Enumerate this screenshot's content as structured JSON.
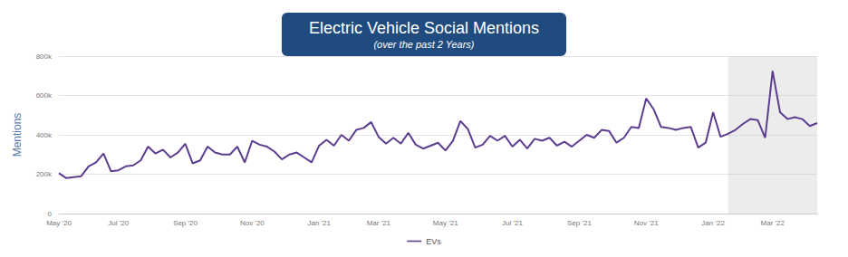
{
  "chart_data": {
    "type": "line",
    "title": "Electric Vehicle Social Mentions",
    "subtitle": "(over the past 2 Years)",
    "y_label": "Mentions",
    "categories": [
      "May '20",
      null,
      null,
      null,
      null,
      null,
      null,
      null,
      "Jul '20",
      null,
      null,
      null,
      null,
      null,
      null,
      null,
      null,
      "Sep '20",
      null,
      null,
      null,
      null,
      null,
      null,
      null,
      null,
      "Nov '20",
      null,
      null,
      null,
      null,
      null,
      null,
      null,
      null,
      "Jan '21",
      null,
      null,
      null,
      null,
      null,
      null,
      null,
      "Mar '21",
      null,
      null,
      null,
      null,
      null,
      null,
      null,
      null,
      "May '21",
      null,
      null,
      null,
      null,
      null,
      null,
      null,
      null,
      "Jul '21",
      null,
      null,
      null,
      null,
      null,
      null,
      null,
      null,
      "Sep '21",
      null,
      null,
      null,
      null,
      null,
      null,
      null,
      null,
      "Nov '21",
      null,
      null,
      null,
      null,
      null,
      null,
      null,
      null,
      "Jan '22",
      null,
      null,
      null,
      null,
      null,
      null,
      null,
      "Mar '22",
      null,
      null,
      null,
      null,
      null,
      null
    ],
    "series": [
      {
        "name": "EVs",
        "color": "#5c3d8f",
        "values": [
          205000,
          180000,
          185000,
          190000,
          240000,
          260000,
          305000,
          215000,
          220000,
          240000,
          245000,
          270000,
          340000,
          305000,
          325000,
          285000,
          310000,
          355000,
          255000,
          270000,
          340000,
          310000,
          300000,
          300000,
          340000,
          260000,
          370000,
          350000,
          340000,
          315000,
          275000,
          300000,
          310000,
          285000,
          260000,
          345000,
          375000,
          345000,
          400000,
          370000,
          425000,
          435000,
          465000,
          390000,
          355000,
          385000,
          355000,
          410000,
          350000,
          330000,
          345000,
          360000,
          320000,
          370000,
          470000,
          430000,
          335000,
          350000,
          395000,
          370000,
          395000,
          340000,
          375000,
          330000,
          380000,
          370000,
          385000,
          345000,
          365000,
          340000,
          370000,
          400000,
          385000,
          425000,
          420000,
          360000,
          385000,
          440000,
          435000,
          585000,
          530000,
          440000,
          435000,
          425000,
          435000,
          440000,
          335000,
          360000,
          515000,
          390000,
          405000,
          425000,
          455000,
          480000,
          475000,
          385000,
          725000,
          515000,
          480000,
          490000,
          480000,
          445000,
          460000
        ]
      }
    ],
    "ylim": [
      0,
      800000
    ],
    "yticks": [
      0,
      {
        "value": 200000,
        "label": "200k"
      },
      {
        "value": 400000,
        "label": "400k"
      },
      {
        "value": 600000,
        "label": "600k"
      },
      {
        "value": 800000,
        "label": "800k"
      }
    ],
    "shaded_region": {
      "start_index": 90,
      "end_index": 102
    },
    "grid": true,
    "legend": "bottom"
  }
}
